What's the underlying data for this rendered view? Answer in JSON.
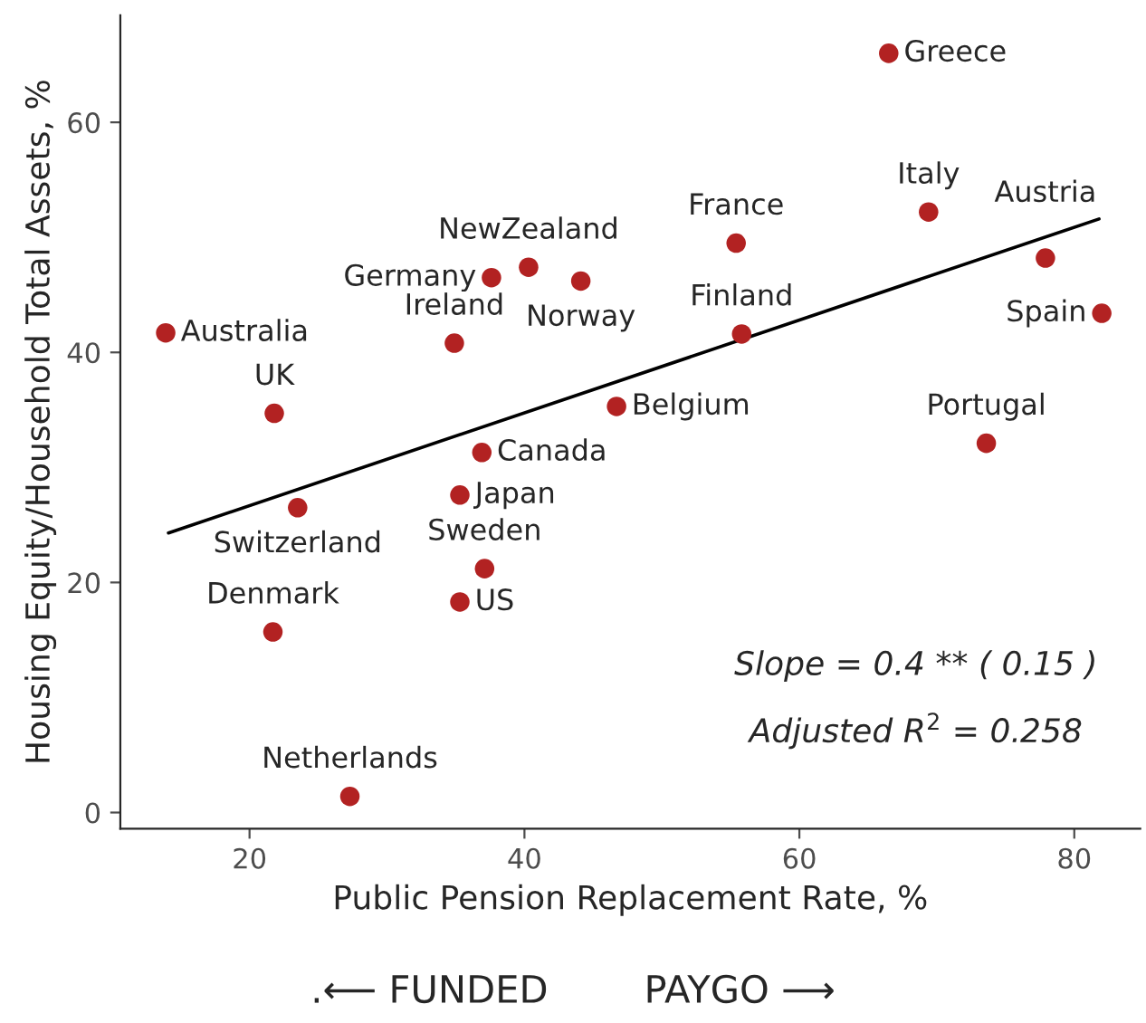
{
  "chart_data": {
    "type": "scatter",
    "xlabel": "Public Pension Replacement Rate, %",
    "ylabel": "Housing Equity/Household Total Assets, %",
    "xlim": [
      10.6,
      84.8
    ],
    "ylim": [
      -1.4,
      69.3
    ],
    "xticks": [
      20,
      40,
      60,
      80
    ],
    "yticks": [
      0,
      20,
      40,
      60
    ],
    "grid": false,
    "legend": false,
    "series": [
      {
        "marker": "circle",
        "color": "#b22222",
        "x": [
          66.5,
          69.4,
          77.9,
          82.0,
          73.6,
          55.4,
          55.8,
          46.7,
          40.3,
          37.6,
          44.1,
          34.9,
          36.9,
          35.3,
          37.1,
          35.3,
          13.9,
          21.8,
          23.5,
          21.7,
          27.3
        ],
        "values": [
          66.0,
          52.2,
          48.2,
          43.4,
          32.1,
          49.5,
          41.6,
          35.3,
          47.4,
          46.5,
          46.2,
          40.8,
          31.3,
          27.6,
          21.2,
          18.3,
          41.7,
          34.7,
          26.5,
          15.7,
          1.4
        ]
      },
      {
        "type": "line",
        "color": "#000000",
        "x": [
          14.1,
          81.8
        ],
        "values": [
          24.3,
          51.6
        ]
      }
    ],
    "annotations": [
      {
        "text": "Greece",
        "x": 66.5,
        "y": 66.0
      },
      {
        "text": "Italy",
        "x": 69.4,
        "y": 52.2
      },
      {
        "text": "Austria",
        "x": 77.9,
        "y": 48.2
      },
      {
        "text": "Spain",
        "x": 82.0,
        "y": 43.4
      },
      {
        "text": "Portugal",
        "x": 73.6,
        "y": 32.1
      },
      {
        "text": "France",
        "x": 55.4,
        "y": 49.5
      },
      {
        "text": "Finland",
        "x": 55.8,
        "y": 41.6
      },
      {
        "text": "Belgium",
        "x": 46.7,
        "y": 35.3
      },
      {
        "text": "NewZealand",
        "x": 40.3,
        "y": 47.4
      },
      {
        "text": "Germany",
        "x": 37.6,
        "y": 46.5
      },
      {
        "text": "Norway",
        "x": 44.1,
        "y": 46.2
      },
      {
        "text": "Ireland",
        "x": 34.9,
        "y": 40.8
      },
      {
        "text": "Canada",
        "x": 36.9,
        "y": 31.3
      },
      {
        "text": "Japan",
        "x": 35.3,
        "y": 27.6
      },
      {
        "text": "Sweden",
        "x": 37.1,
        "y": 21.2
      },
      {
        "text": "US",
        "x": 35.3,
        "y": 18.3
      },
      {
        "text": "Australia",
        "x": 13.9,
        "y": 41.7
      },
      {
        "text": "UK",
        "x": 21.8,
        "y": 34.7
      },
      {
        "text": "Switzerland",
        "x": 23.5,
        "y": 26.5
      },
      {
        "text": "Denmark",
        "x": 21.7,
        "y": 15.7
      },
      {
        "text": "Netherlands",
        "x": 27.3,
        "y": 1.4
      },
      "Slope = 0.4 ** ( 0.15 )",
      "Adjusted R$^{2}$ = 0.258",
      ".⟵ FUNDED        PAYGO ⟶"
    ]
  }
}
